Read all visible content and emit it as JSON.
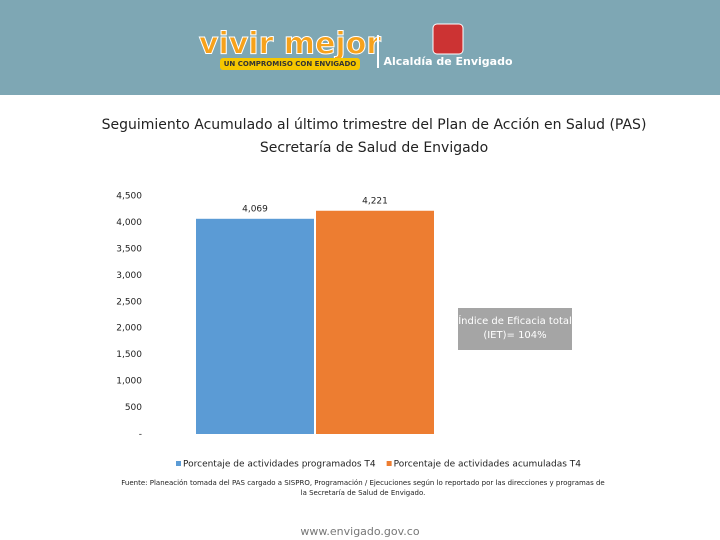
{
  "header": {
    "brand": "vivir mejor",
    "slogan": "UN COMPROMISO CON ENVIGADO",
    "institution": "Alcaldía de Envigado"
  },
  "chart_data": {
    "type": "bar",
    "title": "Seguimiento Acumulado al último trimestre del Plan de Acción en Salud (PAS)",
    "subtitle": "Secretaría de Salud de Envigado",
    "categories": [
      null
    ],
    "series": [
      {
        "name": "Porcentaje de actividades programados T4",
        "color": "#5b9bd5",
        "values": [
          4069
        ],
        "value_labels": [
          "4,069"
        ]
      },
      {
        "name": "Porcentaje de actividades acumuladas T4",
        "color": "#ed7d31",
        "values": [
          4221
        ],
        "value_labels": [
          "4,221"
        ]
      }
    ],
    "ylim": [
      0,
      4500
    ],
    "yticks": [
      {
        "value": 0,
        "label": "-"
      },
      500,
      {
        "value": 1000,
        "label": "1,000"
      },
      {
        "value": 1500,
        "label": "1,500"
      },
      {
        "value": 2000,
        "label": "2,000"
      },
      {
        "value": 2500,
        "label": "2,500"
      },
      {
        "value": 3000,
        "label": "3,000"
      },
      {
        "value": 3500,
        "label": "3,500"
      },
      {
        "value": 4000,
        "label": "4,000"
      },
      {
        "value": 4500,
        "label": "4,500"
      }
    ],
    "grid": false,
    "legend": "bottom",
    "annotation": "Índice de Eficacia total (IET)= 104%",
    "source": "Fuente: Planeación tomada del PAS cargado a SISPRO, Programación / Ejecuciones según lo reportado por las direcciones y programas de la Secretaría de Salud de Envigado."
  },
  "footer": "www.envigado.gov.co"
}
